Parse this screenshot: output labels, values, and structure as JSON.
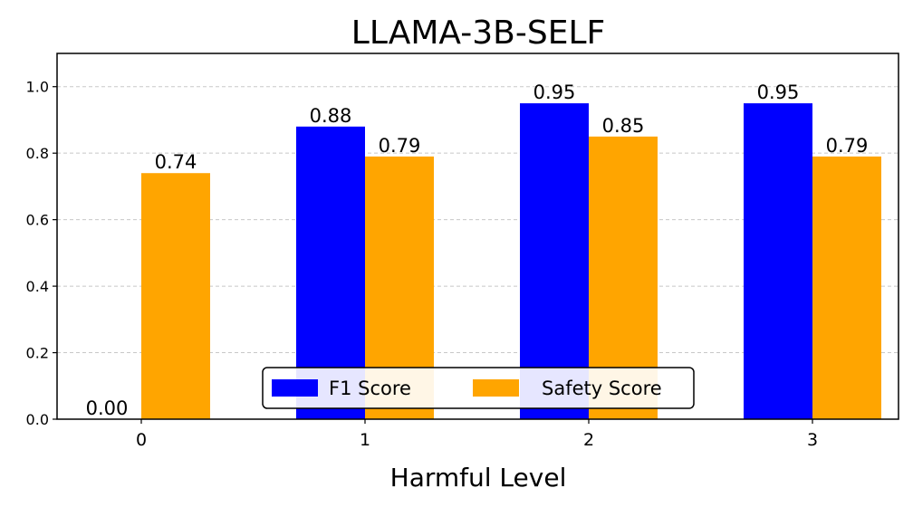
{
  "chart_data": {
    "type": "bar",
    "title": "LLAMA-3B-SELF",
    "xlabel": "Harmful Level",
    "ylabel": "",
    "categories": [
      "0",
      "1",
      "2",
      "3"
    ],
    "series": [
      {
        "name": "F1 Score",
        "color": "#0000ff",
        "values": [
          0.0,
          0.88,
          0.95,
          0.95
        ],
        "labels": [
          "0.00",
          "0.88",
          "0.95",
          "0.95"
        ]
      },
      {
        "name": "Safety Score",
        "color": "#ffa500",
        "values": [
          0.74,
          0.79,
          0.85,
          0.79
        ],
        "labels": [
          "0.74",
          "0.79",
          "0.85",
          "0.79"
        ]
      }
    ],
    "ylim": [
      0,
      1.1
    ],
    "yticks": [
      0.0,
      0.2,
      0.4,
      0.6,
      0.8,
      1.0
    ],
    "ytick_labels": [
      "0.0",
      "0.2",
      "0.4",
      "0.6",
      "0.8",
      "1.0"
    ],
    "grid": "y-dashed",
    "legend_position": "bottom-center"
  }
}
